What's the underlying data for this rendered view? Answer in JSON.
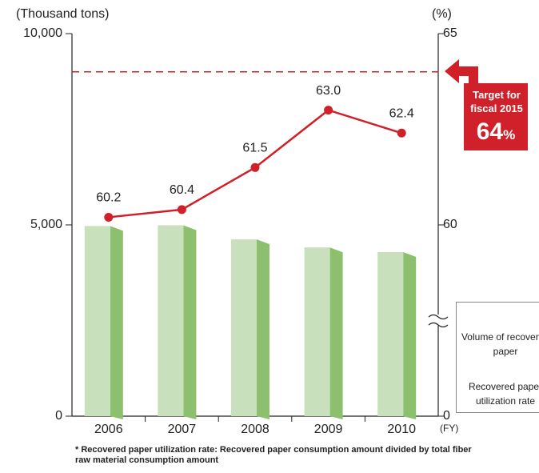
{
  "chart_data": {
    "type": "bar_line",
    "y_label": "(Thousand tons)",
    "y2_label": "(%)",
    "x_unit_label": "(FY)",
    "categories": [
      "2006",
      "2007",
      "2008",
      "2009",
      "2010"
    ],
    "series": [
      {
        "name": "Volume of recovered paper",
        "type": "bar",
        "color": "#c8e0bc",
        "side_color": "#8cbf6e",
        "values": [
          4970,
          4990,
          4620,
          4410,
          4290
        ]
      },
      {
        "name": "Recovered paper utilization rate",
        "type": "line",
        "axis": "y2",
        "color": "#d0202a",
        "values": [
          60.2,
          60.4,
          61.5,
          63.0,
          62.4
        ],
        "value_labels": [
          "60.2",
          "60.4",
          "61.5",
          "63.0",
          "62.4"
        ]
      }
    ],
    "ylim": [
      0,
      10000
    ],
    "yticks": [
      0,
      {
        "value": 5000,
        "label": "5,000"
      },
      {
        "value": 10000,
        "label": "10,000"
      }
    ],
    "y2lim": [
      0,
      65
    ],
    "y2ticks": [
      0,
      60,
      65
    ],
    "y2_scale": "broken",
    "target": {
      "label": "Target for fiscal 2015",
      "value": 64,
      "unit": "%",
      "color": "#d0202a"
    },
    "note": "* Recovered paper utilization rate: Recovered paper consumption amount divided by total fiber raw material consumption amount"
  }
}
